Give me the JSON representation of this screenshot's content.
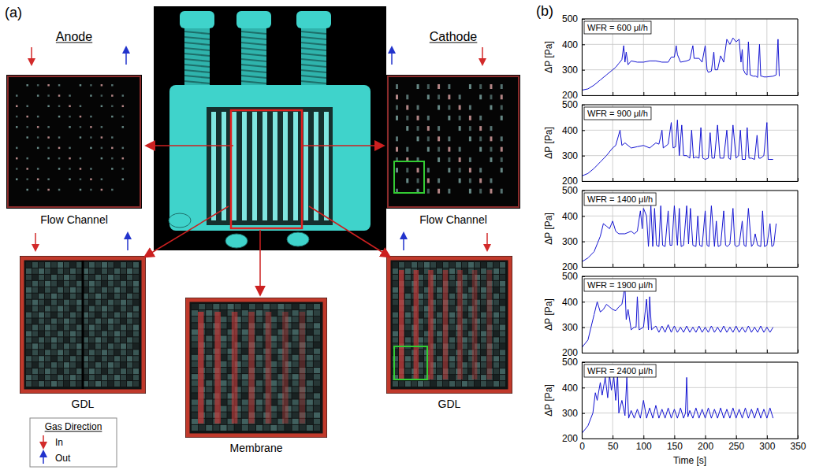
{
  "panel_a": {
    "label": "(a)",
    "anode_title": "Anode",
    "cathode_title": "Cathode",
    "anode_flow_caption": "Flow Channel",
    "cathode_flow_caption": "Flow Channel",
    "anode_gdl_caption": "GDL",
    "cathode_gdl_caption": "GDL",
    "membrane_caption": "Membrane",
    "legend": {
      "title": "Gas Direction",
      "entries": [
        "In",
        "Out"
      ]
    }
  },
  "panel_b": {
    "label": "(b)"
  },
  "chart_data": [
    {
      "type": "line",
      "annotation": "WFR = 600 μl/h",
      "y_label": "ΔP [Pa]",
      "color": "#1414d2",
      "x": [
        0,
        10,
        20,
        30,
        40,
        50,
        55,
        60,
        65,
        68,
        70,
        72,
        75,
        80,
        90,
        100,
        110,
        120,
        130,
        140,
        145,
        150,
        153,
        155,
        160,
        170,
        175,
        180,
        182,
        185,
        190,
        195,
        200,
        203,
        205,
        210,
        214,
        216,
        220,
        225,
        230,
        235,
        240,
        245,
        250,
        255,
        258,
        260,
        262,
        265,
        268,
        270,
        273,
        278,
        282,
        285,
        288,
        290,
        292,
        295,
        300,
        310,
        315,
        318,
        320
      ],
      "values": [
        220,
        225,
        240,
        260,
        280,
        300,
        310,
        325,
        340,
        395,
        330,
        370,
        320,
        335,
        330,
        330,
        335,
        335,
        330,
        330,
        350,
        350,
        395,
        360,
        330,
        335,
        340,
        395,
        345,
        345,
        345,
        330,
        395,
        300,
        290,
        295,
        370,
        300,
        300,
        355,
        330,
        420,
        400,
        425,
        410,
        420,
        330,
        380,
        300,
        285,
        280,
        410,
        280,
        275,
        275,
        270,
        400,
        275,
        275,
        272,
        272,
        275,
        280,
        420,
        275
      ],
      "xlim": [
        0,
        350
      ],
      "ylim": [
        200,
        500
      ],
      "xticks": [
        0,
        50,
        100,
        150,
        200,
        250,
        300,
        350
      ],
      "yticks": [
        200,
        300,
        400,
        500
      ],
      "grid": true,
      "tick_labels": "y"
    },
    {
      "type": "line",
      "annotation": "WFR = 900 μl/h",
      "y_label": "ΔP [Pa]",
      "color": "#1414d2",
      "x": [
        0,
        10,
        20,
        30,
        40,
        50,
        55,
        62,
        65,
        70,
        80,
        90,
        100,
        110,
        120,
        125,
        130,
        132,
        140,
        145,
        148,
        152,
        155,
        158,
        162,
        165,
        170,
        175,
        178,
        181,
        185,
        190,
        193,
        196,
        200,
        205,
        208,
        211,
        215,
        220,
        224,
        227,
        230,
        235,
        238,
        241,
        245,
        250,
        254,
        257,
        260,
        265,
        268,
        271,
        275,
        280,
        284,
        287,
        290,
        295,
        300,
        302,
        305,
        310
      ],
      "values": [
        220,
        230,
        250,
        275,
        300,
        330,
        340,
        400,
        340,
        350,
        330,
        335,
        340,
        330,
        350,
        345,
        400,
        330,
        345,
        430,
        330,
        335,
        440,
        300,
        420,
        300,
        300,
        290,
        400,
        290,
        295,
        290,
        410,
        290,
        285,
        290,
        390,
        290,
        290,
        420,
        290,
        290,
        290,
        400,
        290,
        285,
        420,
        290,
        300,
        400,
        285,
        285,
        410,
        290,
        290,
        285,
        380,
        290,
        290,
        300,
        430,
        285,
        285,
        285
      ],
      "xlim": [
        0,
        350
      ],
      "ylim": [
        200,
        500
      ],
      "xticks": [
        0,
        50,
        100,
        150,
        200,
        250,
        300,
        350
      ],
      "yticks": [
        200,
        300,
        400,
        500
      ],
      "grid": true,
      "tick_labels": "y"
    },
    {
      "type": "line",
      "annotation": "WFR = 1400 μl/h",
      "y_label": "ΔP [Pa]",
      "color": "#1414d2",
      "x": [
        0,
        10,
        20,
        25,
        30,
        35,
        40,
        45,
        50,
        55,
        60,
        70,
        80,
        85,
        90,
        95,
        98,
        100,
        105,
        108,
        112,
        115,
        118,
        121,
        125,
        128,
        131,
        135,
        140,
        143,
        146,
        150,
        155,
        158,
        161,
        165,
        170,
        173,
        176,
        180,
        185,
        188,
        191,
        195,
        200,
        203,
        206,
        210,
        215,
        218,
        221,
        225,
        230,
        233,
        236,
        240,
        245,
        248,
        251,
        255,
        260,
        263,
        266,
        270,
        275,
        278,
        281,
        285,
        290,
        293,
        296,
        300,
        305,
        308,
        311,
        315
      ],
      "values": [
        220,
        235,
        260,
        290,
        320,
        370,
        360,
        350,
        380,
        340,
        330,
        330,
        340,
        330,
        340,
        420,
        350,
        430,
        400,
        280,
        440,
        280,
        430,
        285,
        280,
        440,
        285,
        280,
        420,
        285,
        285,
        440,
        285,
        430,
        280,
        285,
        440,
        290,
        430,
        285,
        280,
        400,
        285,
        280,
        420,
        285,
        280,
        440,
        280,
        380,
        280,
        285,
        420,
        285,
        280,
        290,
        430,
        285,
        280,
        285,
        380,
        285,
        280,
        430,
        280,
        290,
        330,
        285,
        280,
        420,
        280,
        285,
        370,
        280,
        285,
        370
      ],
      "xlim": [
        0,
        350
      ],
      "ylim": [
        200,
        500
      ],
      "xticks": [
        0,
        50,
        100,
        150,
        200,
        250,
        300,
        350
      ],
      "yticks": [
        200,
        300,
        400,
        500
      ],
      "grid": true,
      "tick_labels": "y"
    },
    {
      "type": "line",
      "annotation": "WFR = 1900 μl/h",
      "y_label": "ΔP [Pa]",
      "color": "#1414d2",
      "x": [
        0,
        10,
        15,
        20,
        25,
        30,
        35,
        40,
        45,
        50,
        55,
        60,
        65,
        70,
        72,
        75,
        80,
        85,
        88,
        90,
        93,
        100,
        105,
        108,
        110,
        113,
        120,
        125,
        130,
        135,
        140,
        145,
        150,
        155,
        160,
        165,
        170,
        175,
        180,
        185,
        190,
        195,
        200,
        205,
        210,
        215,
        220,
        225,
        230,
        235,
        240,
        245,
        250,
        255,
        260,
        265,
        270,
        275,
        280,
        285,
        290,
        295,
        300,
        305,
        310
      ],
      "values": [
        220,
        250,
        300,
        350,
        400,
        360,
        370,
        390,
        380,
        370,
        365,
        380,
        390,
        460,
        330,
        370,
        290,
        300,
        300,
        420,
        290,
        300,
        410,
        290,
        420,
        290,
        305,
        280,
        305,
        280,
        310,
        280,
        305,
        280,
        300,
        280,
        305,
        280,
        300,
        280,
        305,
        280,
        300,
        280,
        305,
        280,
        300,
        280,
        305,
        280,
        300,
        280,
        305,
        280,
        300,
        280,
        305,
        280,
        300,
        280,
        305,
        280,
        300,
        280,
        300
      ],
      "xlim": [
        0,
        350
      ],
      "ylim": [
        200,
        500
      ],
      "xticks": [
        0,
        50,
        100,
        150,
        200,
        250,
        300,
        350
      ],
      "yticks": [
        200,
        300,
        400,
        500
      ],
      "grid": true,
      "tick_labels": "y"
    },
    {
      "type": "line",
      "annotation": "WFR = 2400 μl/h",
      "y_label": "ΔP [Pa]",
      "x_label": "Time [s]",
      "color": "#1414d2",
      "x": [
        0,
        10,
        18,
        22,
        25,
        30,
        33,
        38,
        42,
        45,
        48,
        52,
        55,
        58,
        60,
        65,
        70,
        73,
        76,
        80,
        85,
        90,
        95,
        100,
        105,
        110,
        115,
        120,
        125,
        130,
        135,
        140,
        145,
        150,
        155,
        160,
        165,
        168,
        170,
        172,
        175,
        180,
        185,
        190,
        195,
        200,
        205,
        210,
        215,
        220,
        225,
        230,
        235,
        240,
        245,
        250,
        255,
        260,
        265,
        270,
        275,
        280,
        285,
        290,
        295,
        300,
        305,
        310
      ],
      "values": [
        220,
        250,
        300,
        380,
        350,
        420,
        370,
        440,
        360,
        450,
        390,
        440,
        350,
        450,
        300,
        350,
        290,
        440,
        280,
        310,
        280,
        315,
        280,
        350,
        280,
        320,
        280,
        330,
        280,
        315,
        280,
        320,
        280,
        315,
        280,
        320,
        280,
        300,
        440,
        285,
        310,
        280,
        320,
        280,
        315,
        280,
        320,
        280,
        315,
        280,
        320,
        280,
        315,
        280,
        320,
        280,
        315,
        280,
        320,
        280,
        315,
        280,
        320,
        280,
        315,
        280,
        320,
        280
      ],
      "xlim": [
        0,
        350
      ],
      "ylim": [
        200,
        500
      ],
      "xticks": [
        0,
        50,
        100,
        150,
        200,
        250,
        300,
        350
      ],
      "yticks": [
        200,
        300,
        400,
        500
      ],
      "grid": true
    }
  ]
}
